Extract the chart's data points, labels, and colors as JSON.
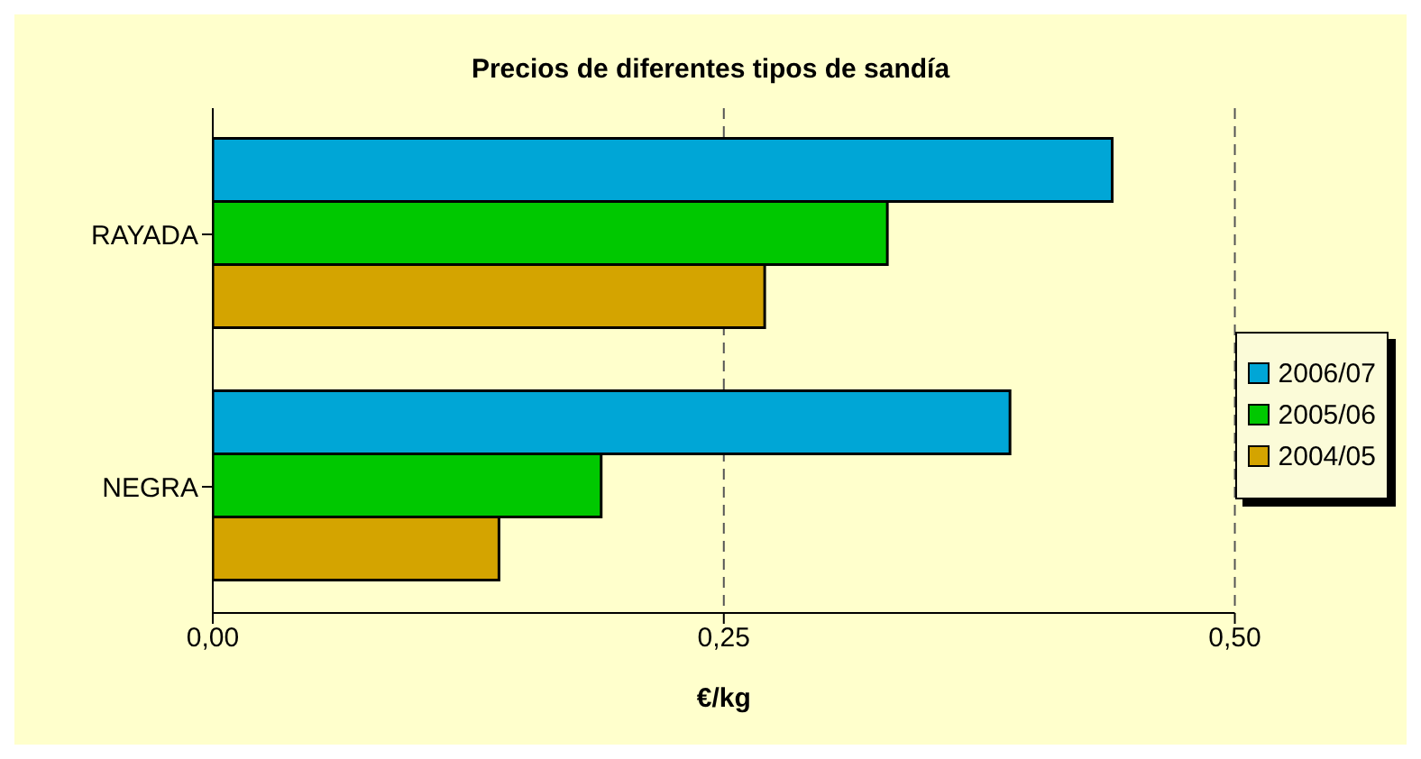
{
  "chart_data": {
    "type": "bar",
    "orientation": "horizontal",
    "title": "Precios de diferentes tipos de sandía",
    "xlabel": "€/kg",
    "categories": [
      "RAYADA",
      "NEGRA"
    ],
    "series": [
      {
        "name": "2006/07",
        "color": "#00a6d6",
        "values": [
          0.44,
          0.39
        ]
      },
      {
        "name": "2005/06",
        "color": "#00c800",
        "values": [
          0.33,
          0.19
        ]
      },
      {
        "name": "2004/05",
        "color": "#d4a400",
        "values": [
          0.27,
          0.14
        ]
      }
    ],
    "xlim": [
      0,
      0.5
    ],
    "xticks": [
      {
        "value": 0,
        "label": "0,00"
      },
      {
        "value": 0.25,
        "label": "0,25"
      },
      {
        "value": 0.5,
        "label": "0,50"
      }
    ],
    "grid": "x",
    "legend": "right"
  }
}
